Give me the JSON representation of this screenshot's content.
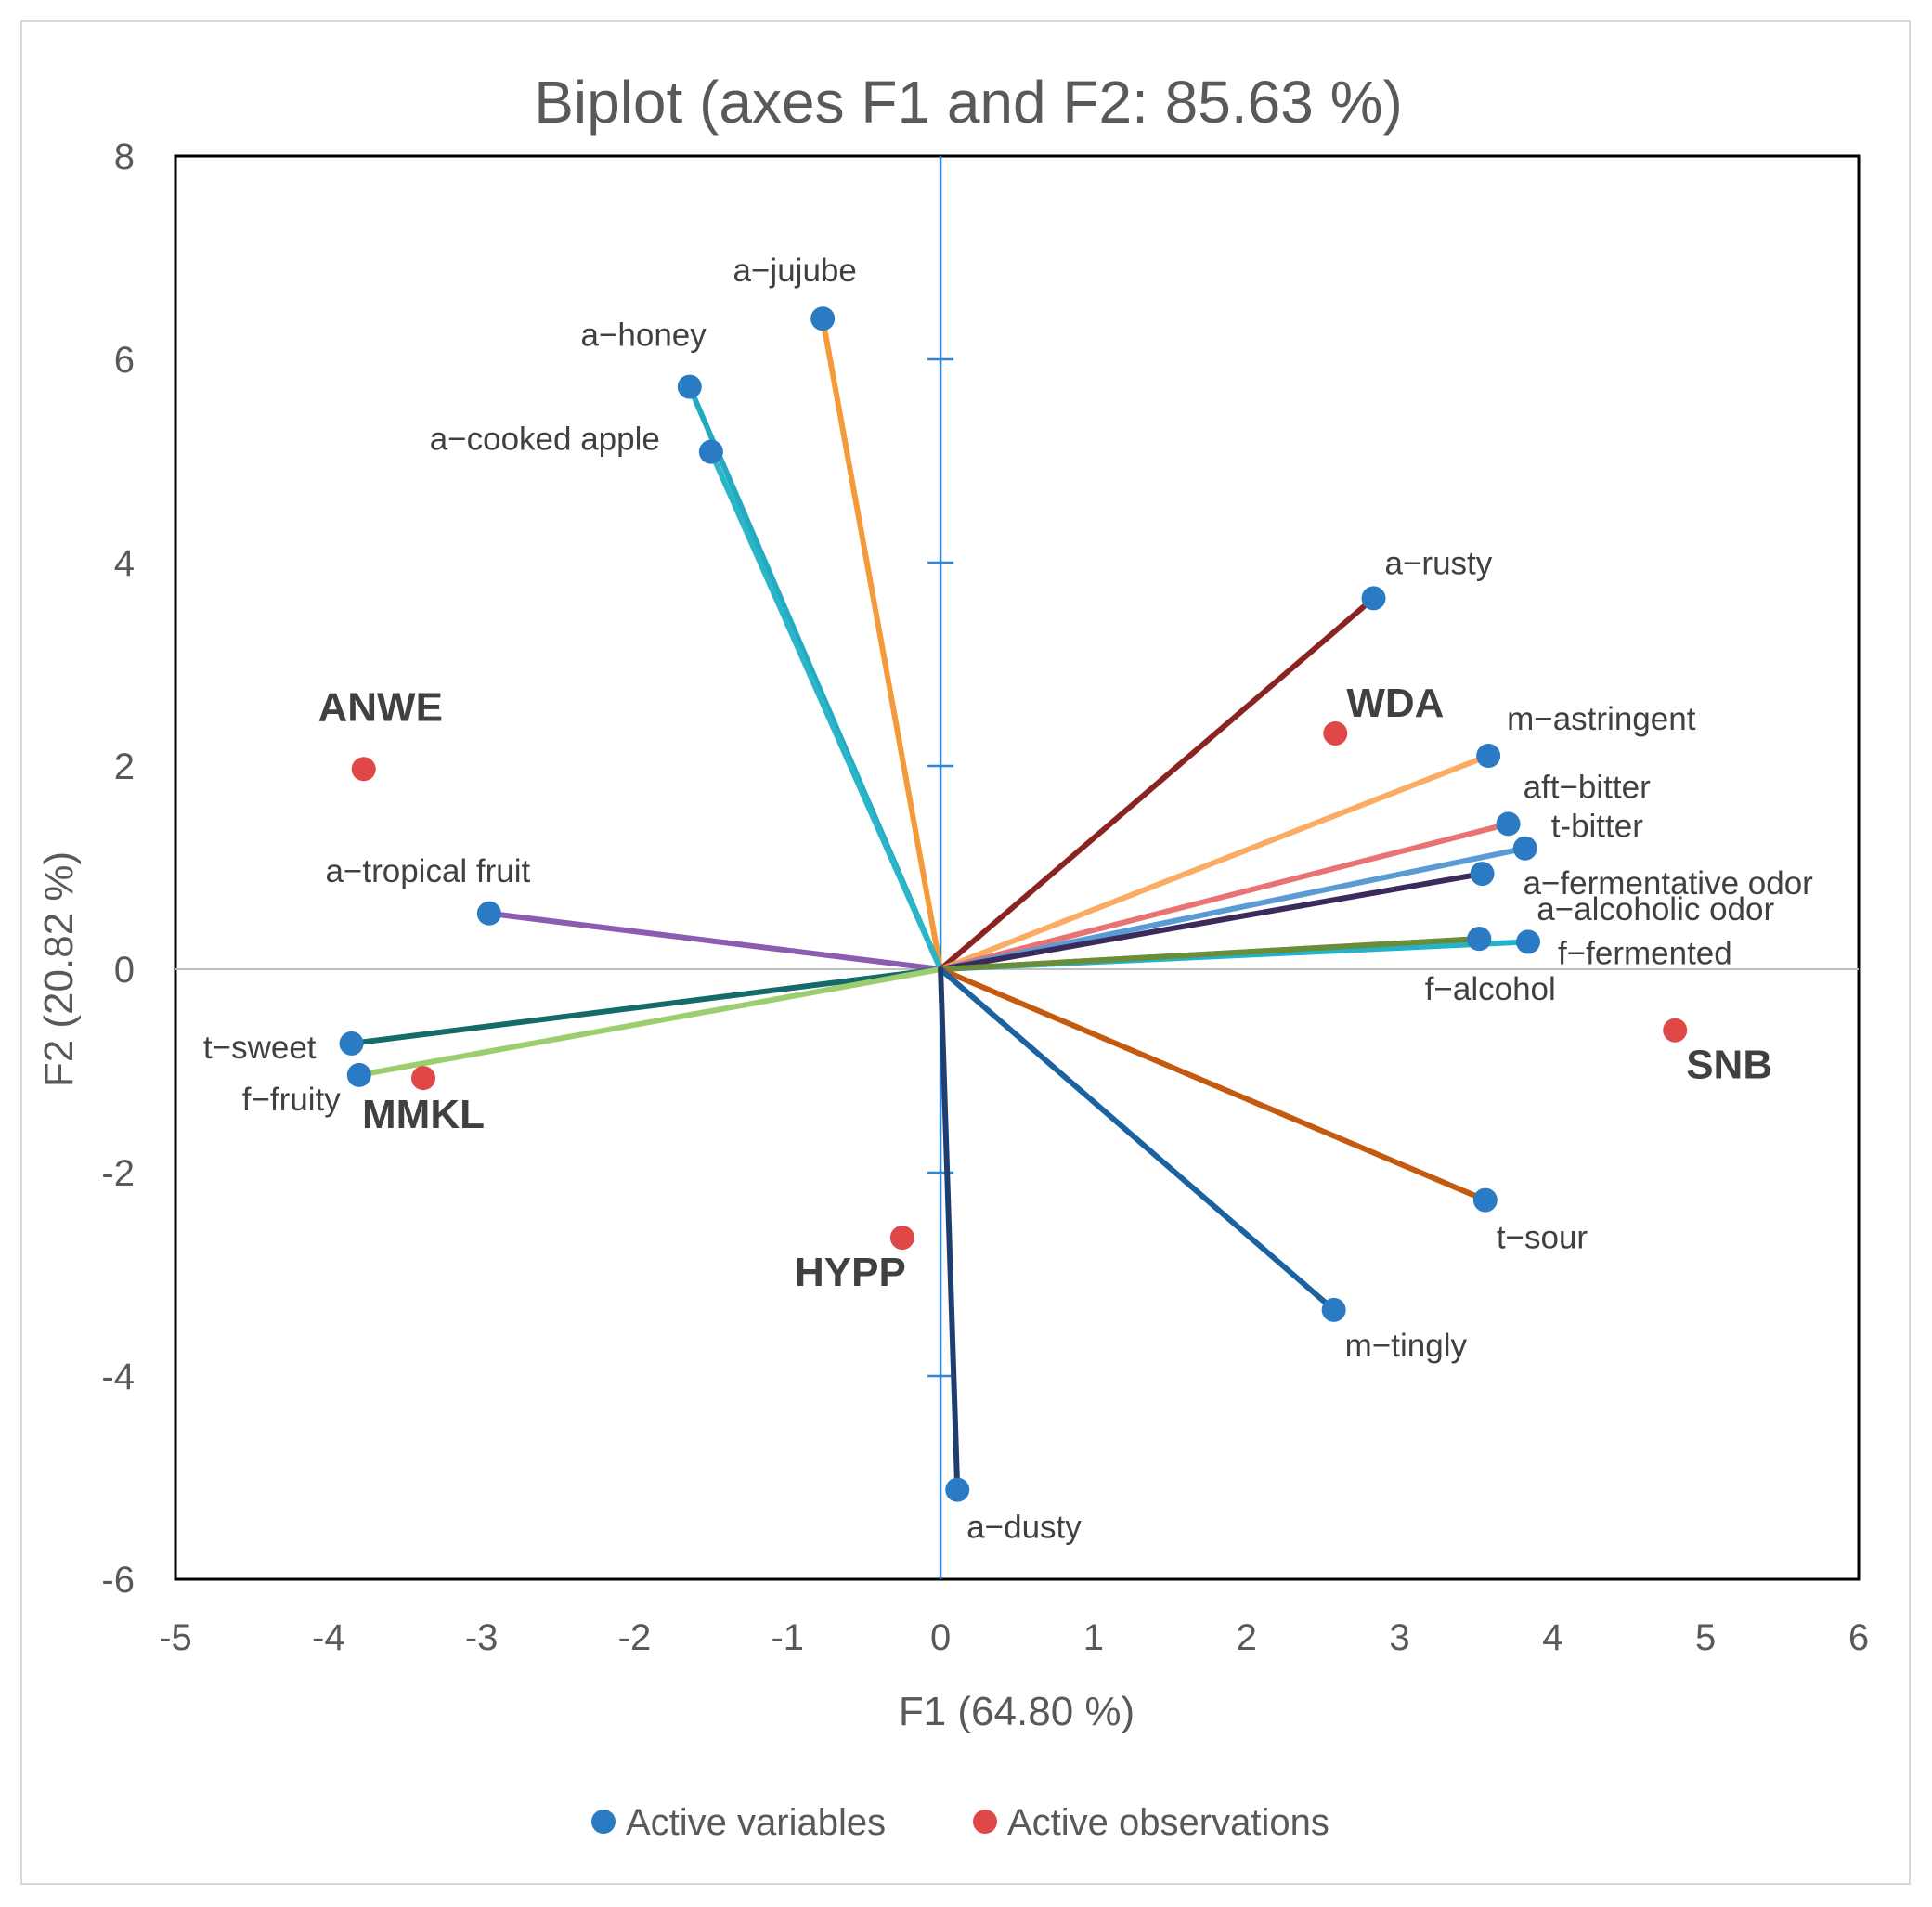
{
  "chart_data": {
    "type": "scatter",
    "title": "Biplot (axes F1 and F2: 85.63 %)",
    "xlabel": "F1 (64.80 %)",
    "ylabel": "F2 (20.82 %)",
    "xlim": [
      -5,
      6
    ],
    "ylim": [
      -6,
      8
    ],
    "x_ticks": [
      -5,
      -4,
      -3,
      -2,
      -1,
      0,
      1,
      2,
      3,
      4,
      5,
      6
    ],
    "y_ticks": [
      -6,
      -4,
      -2,
      0,
      2,
      4,
      6,
      8
    ],
    "grid": false,
    "legend": {
      "position": "bottom",
      "entries": [
        {
          "label": "Active variables",
          "color": "#2b7bc4"
        },
        {
          "label": "Active observations",
          "color": "#e04848"
        }
      ]
    },
    "variables": [
      {
        "name": "a−jujube",
        "x": -0.77,
        "y": 6.4,
        "color": "#f59a3a",
        "anchor": "middle",
        "dx": -30,
        "dy": -40
      },
      {
        "name": "a−honey",
        "x": -1.64,
        "y": 5.73,
        "color": "#24aac0",
        "anchor": "end",
        "dx": 18,
        "dy": -44
      },
      {
        "name": "a−cooked apple",
        "x": -1.5,
        "y": 5.09,
        "color": "#2ab5c8",
        "anchor": "end",
        "dx": -55,
        "dy": -2
      },
      {
        "name": "a−rusty",
        "x": 2.83,
        "y": 3.65,
        "color": "#8b2323",
        "anchor": "start",
        "dx": 12,
        "dy": -26
      },
      {
        "name": "m−astringent",
        "x": 3.58,
        "y": 2.1,
        "color": "#fbab62",
        "anchor": "start",
        "dx": 20,
        "dy": -28
      },
      {
        "name": "aft−bitter",
        "x": 3.71,
        "y": 1.43,
        "color": "#e97272",
        "anchor": "start",
        "dx": 16,
        "dy": -28
      },
      {
        "name": "t-bitter",
        "x": 3.82,
        "y": 1.19,
        "color": "#5b9bd5",
        "anchor": "start",
        "dx": 28,
        "dy": -12
      },
      {
        "name": "a−fermentative odor",
        "x": 3.54,
        "y": 0.94,
        "color": "#3b2a5c",
        "anchor": "start",
        "dx": 44,
        "dy": 22
      },
      {
        "name": "a−alcoholic odor",
        "x": 3.52,
        "y": 0.3,
        "color": "#5e7f2a",
        "anchor": "start",
        "dx": 62,
        "dy": -20
      },
      {
        "name": "f−fermented",
        "x": 3.84,
        "y": 0.27,
        "color": "#22b2c9",
        "anchor": "start",
        "dx": 32,
        "dy": 24
      },
      {
        "name": "f−alcohol",
        "x": 3.52,
        "y": 0.3,
        "color": "#6a8d3a",
        "anchor": "middle",
        "dx": 12,
        "dy": 66
      },
      {
        "name": "a−tropical fruit",
        "x": -2.95,
        "y": 0.55,
        "color": "#8a5db0",
        "anchor": "middle",
        "dx": -66,
        "dy": -34
      },
      {
        "name": "t−sweet",
        "x": -3.85,
        "y": -0.73,
        "color": "#156a6a",
        "anchor": "end",
        "dx": -38,
        "dy": 16
      },
      {
        "name": "f−fruity",
        "x": -3.8,
        "y": -1.04,
        "color": "#9ccd6e",
        "anchor": "end",
        "dx": -20,
        "dy": 38
      },
      {
        "name": "t−sour",
        "x": 3.56,
        "y": -2.27,
        "color": "#c45a10",
        "anchor": "start",
        "dx": 12,
        "dy": 52
      },
      {
        "name": "m−tingly",
        "x": 2.57,
        "y": -3.35,
        "color": "#1b63a0",
        "anchor": "start",
        "dx": 12,
        "dy": 50
      },
      {
        "name": "a−dusty",
        "x": 0.11,
        "y": -5.12,
        "color": "#1f3e6e",
        "anchor": "start",
        "dx": 10,
        "dy": 52
      }
    ],
    "observations": [
      {
        "name": "ANWE",
        "x": -3.77,
        "y": 1.97,
        "anchor": "middle",
        "dx": 18,
        "dy": -52
      },
      {
        "name": "WDA",
        "x": 2.58,
        "y": 2.32,
        "anchor": "start",
        "dx": 12,
        "dy": -18
      },
      {
        "name": "SNB",
        "x": 4.8,
        "y": -0.6,
        "anchor": "start",
        "dx": 12,
        "dy": 52
      },
      {
        "name": "MMKL",
        "x": -3.38,
        "y": -1.07,
        "anchor": "middle",
        "dx": 0,
        "dy": 54
      },
      {
        "name": "HYPP",
        "x": -0.25,
        "y": -2.64,
        "anchor": "middle",
        "dx": -56,
        "dy": 52
      }
    ]
  },
  "colors": {
    "variable_point": "#2b7bc4",
    "observation_point": "#e04848",
    "origin_axis_x": "#bfbfbf",
    "origin_axis_y": "#2e86d4"
  }
}
